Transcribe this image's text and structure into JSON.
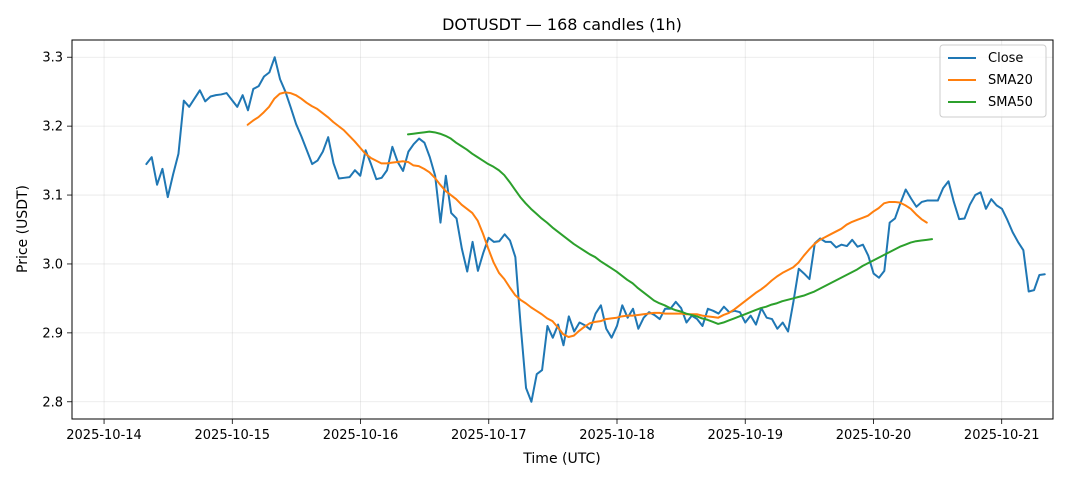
{
  "chart_data": {
    "type": "line",
    "title": "DOTUSDT — 168 candles (1h)",
    "xlabel": "Time (UTC)",
    "ylabel": "Price (USDT)",
    "x_ticks": [
      "2025-10-14",
      "2025-10-15",
      "2025-10-16",
      "2025-10-17",
      "2025-10-18",
      "2025-10-19",
      "2025-10-20",
      "2025-10-21"
    ],
    "x_range_days": [
      -0.25,
      7.4
    ],
    "y_ticks": [
      "2.8",
      "2.9",
      "3.0",
      "3.1",
      "3.2",
      "3.3"
    ],
    "ylim": [
      2.775,
      3.325
    ],
    "grid": true,
    "legend_position": "top-right",
    "series": [
      {
        "name": "Close",
        "color": "#1f77b4",
        "x_start": 0.33,
        "x_step": 0.0417,
        "values": [
          3.145,
          3.155,
          3.115,
          3.138,
          3.097,
          3.13,
          3.16,
          3.237,
          3.228,
          3.24,
          3.252,
          3.236,
          3.243,
          3.245,
          3.246,
          3.248,
          3.238,
          3.228,
          3.245,
          3.223,
          3.254,
          3.258,
          3.272,
          3.278,
          3.3,
          3.268,
          3.25,
          3.227,
          3.203,
          3.185,
          3.165,
          3.145,
          3.15,
          3.163,
          3.184,
          3.146,
          3.124,
          3.125,
          3.126,
          3.136,
          3.128,
          3.165,
          3.145,
          3.123,
          3.125,
          3.136,
          3.17,
          3.148,
          3.135,
          3.163,
          3.174,
          3.182,
          3.176,
          3.155,
          3.128,
          3.06,
          3.128,
          3.074,
          3.066,
          3.022,
          2.989,
          3.032,
          2.99,
          3.016,
          3.038,
          3.032,
          3.033,
          3.043,
          3.034,
          3.01,
          2.91,
          2.82,
          2.8,
          2.84,
          2.846,
          2.91,
          2.893,
          2.912,
          2.882,
          2.924,
          2.902,
          2.915,
          2.911,
          2.905,
          2.928,
          2.94,
          2.906,
          2.893,
          2.91,
          2.94,
          2.922,
          2.935,
          2.906,
          2.922,
          2.93,
          2.926,
          2.92,
          2.935,
          2.935,
          2.945,
          2.936,
          2.915,
          2.925,
          2.92,
          2.91,
          2.935,
          2.932,
          2.928,
          2.938,
          2.93,
          2.932,
          2.93,
          2.915,
          2.925,
          2.912,
          2.936,
          2.922,
          2.92,
          2.906,
          2.915,
          2.902,
          2.945,
          2.993,
          2.986,
          2.978,
          3.03,
          3.037,
          3.032,
          3.032,
          3.024,
          3.028,
          3.026,
          3.035,
          3.025,
          3.028,
          3.012,
          2.986,
          2.98,
          2.99,
          3.06,
          3.066,
          3.088,
          3.108,
          3.095,
          3.083,
          3.09,
          3.092,
          3.092,
          3.092,
          3.11,
          3.12,
          3.09,
          3.065,
          3.066,
          3.086,
          3.1,
          3.104,
          3.08,
          3.094,
          3.085,
          3.08,
          3.064,
          3.046,
          3.032,
          3.02,
          2.96,
          2.962,
          2.984,
          2.985
        ]
      },
      {
        "name": "SMA20",
        "color": "#ff7f0e",
        "x_start": 1.12,
        "x_step": 0.0417,
        "values": [
          3.202,
          3.208,
          3.213,
          3.22,
          3.228,
          3.24,
          3.247,
          3.249,
          3.248,
          3.245,
          3.24,
          3.234,
          3.229,
          3.225,
          3.219,
          3.213,
          3.206,
          3.2,
          3.194,
          3.186,
          3.178,
          3.169,
          3.16,
          3.154,
          3.15,
          3.146,
          3.146,
          3.147,
          3.148,
          3.149,
          3.148,
          3.143,
          3.142,
          3.138,
          3.133,
          3.125,
          3.115,
          3.106,
          3.1,
          3.094,
          3.086,
          3.08,
          3.074,
          3.063,
          3.044,
          3.022,
          3.002,
          2.987,
          2.978,
          2.966,
          2.955,
          2.948,
          2.943,
          2.937,
          2.932,
          2.927,
          2.921,
          2.917,
          2.908,
          2.898,
          2.894,
          2.896,
          2.903,
          2.909,
          2.914,
          2.916,
          2.917,
          2.92,
          2.921,
          2.922,
          2.924,
          2.925,
          2.925,
          2.926,
          2.927,
          2.928,
          2.929,
          2.929,
          2.928,
          2.928,
          2.928,
          2.928,
          2.927,
          2.927,
          2.927,
          2.925,
          2.924,
          2.923,
          2.922,
          2.926,
          2.929,
          2.934,
          2.94,
          2.946,
          2.952,
          2.958,
          2.963,
          2.969,
          2.976,
          2.982,
          2.987,
          2.991,
          2.995,
          3.002,
          3.012,
          3.021,
          3.029,
          3.035,
          3.039,
          3.043,
          3.047,
          3.051,
          3.057,
          3.061,
          3.064,
          3.067,
          3.07,
          3.076,
          3.081,
          3.088,
          3.09,
          3.09,
          3.089,
          3.085,
          3.08,
          3.072,
          3.065,
          3.06
        ]
      },
      {
        "name": "SMA50",
        "color": "#2ca02c",
        "x_start": 2.37,
        "x_step": 0.0417,
        "values": [
          3.188,
          3.189,
          3.19,
          3.191,
          3.192,
          3.191,
          3.189,
          3.186,
          3.182,
          3.176,
          3.171,
          3.166,
          3.16,
          3.155,
          3.15,
          3.145,
          3.141,
          3.136,
          3.129,
          3.119,
          3.108,
          3.097,
          3.088,
          3.08,
          3.073,
          3.066,
          3.06,
          3.053,
          3.047,
          3.041,
          3.035,
          3.029,
          3.024,
          3.019,
          3.014,
          3.01,
          3.004,
          2.999,
          2.994,
          2.989,
          2.983,
          2.977,
          2.972,
          2.965,
          2.959,
          2.953,
          2.947,
          2.943,
          2.94,
          2.936,
          2.933,
          2.931,
          2.928,
          2.926,
          2.924,
          2.921,
          2.919,
          2.916,
          2.913,
          2.915,
          2.918,
          2.921,
          2.924,
          2.927,
          2.93,
          2.933,
          2.936,
          2.938,
          2.941,
          2.943,
          2.946,
          2.948,
          2.95,
          2.952,
          2.954,
          2.957,
          2.96,
          2.964,
          2.968,
          2.972,
          2.976,
          2.98,
          2.984,
          2.988,
          2.992,
          2.997,
          3.001,
          3.005,
          3.009,
          3.013,
          3.017,
          3.021,
          3.025,
          3.028,
          3.031,
          3.033,
          3.034,
          3.035,
          3.036
        ]
      }
    ]
  }
}
